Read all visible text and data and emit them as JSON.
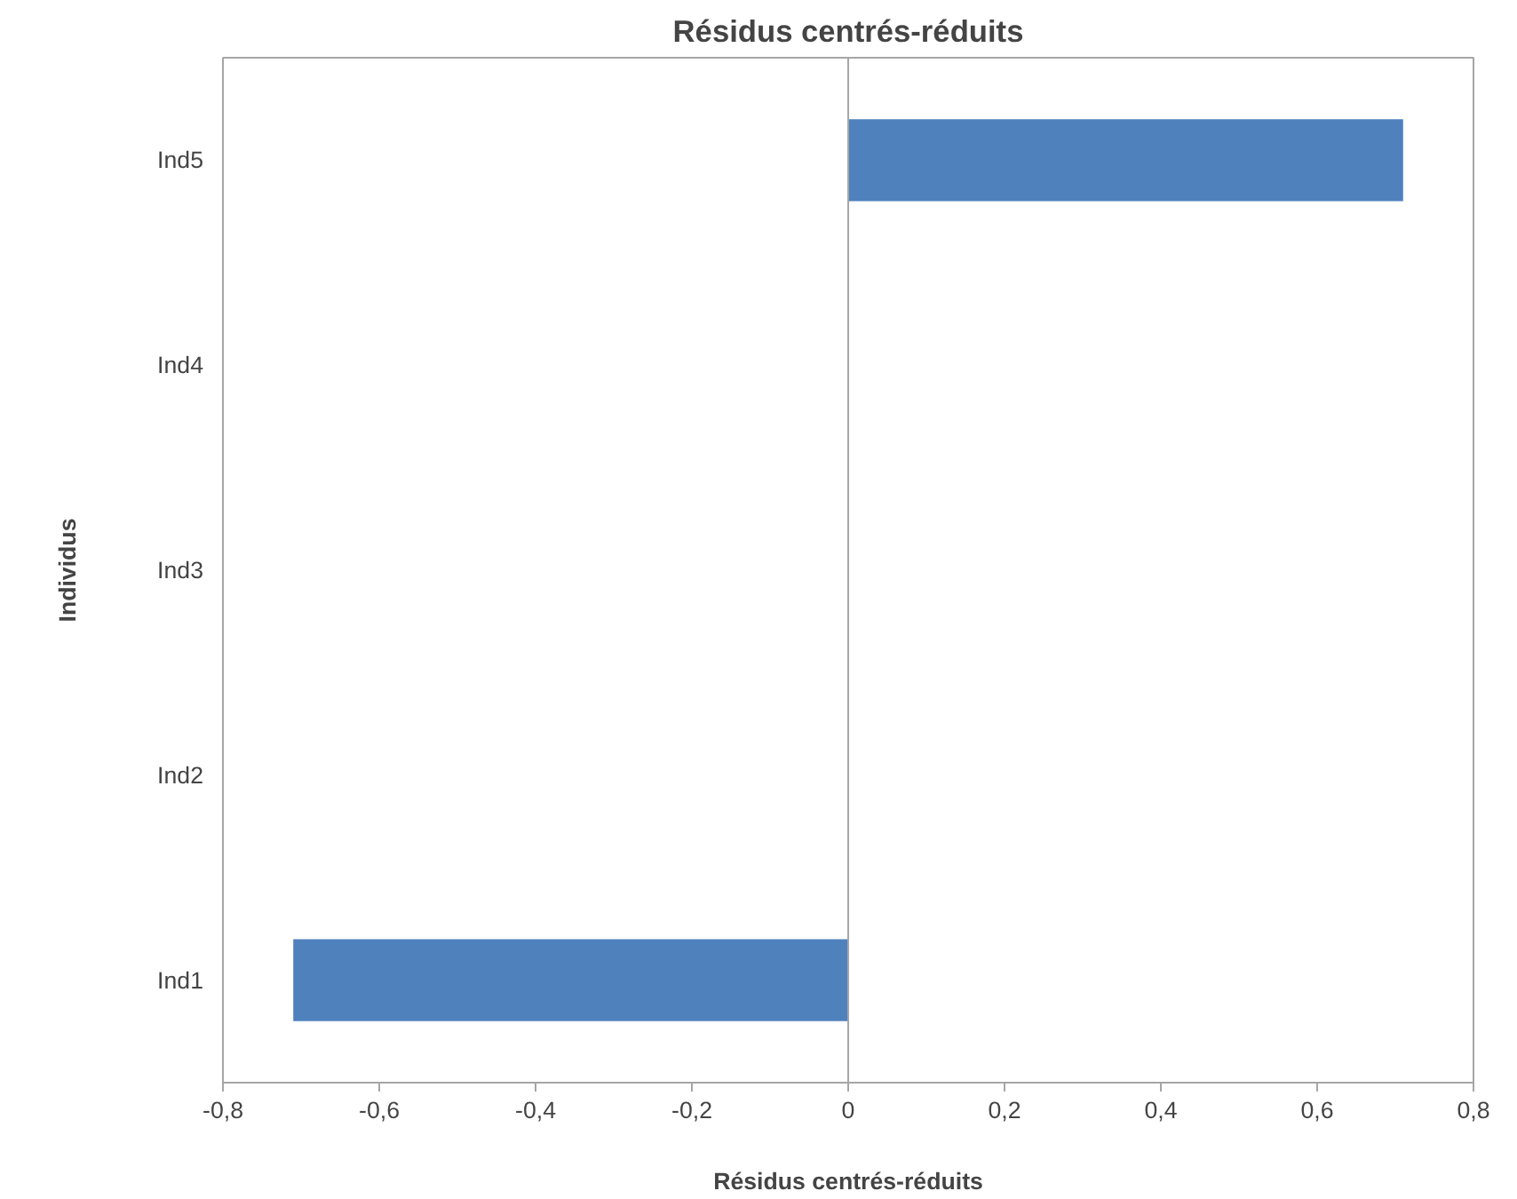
{
  "chart_data": {
    "type": "bar",
    "orientation": "horizontal",
    "title": "Résidus centrés-réduits",
    "xlabel": "Résidus centrés-réduits",
    "ylabel": "Individus",
    "categories": [
      "Ind5",
      "Ind4",
      "Ind3",
      "Ind2",
      "Ind1"
    ],
    "values": [
      0.71,
      0,
      0,
      0,
      -0.71
    ],
    "color": "#4f81bd",
    "xlim": [
      -0.8,
      0.8
    ],
    "xticks": [
      {
        "value": -0.8,
        "label": "-0,8"
      },
      {
        "value": -0.6,
        "label": "-0,6"
      },
      {
        "value": -0.4,
        "label": "-0,4"
      },
      {
        "value": -0.2,
        "label": "-0,2"
      },
      0,
      {
        "value": 0.2,
        "label": "0,2"
      },
      {
        "value": 0.4,
        "label": "0,4"
      },
      {
        "value": 0.6,
        "label": "0,6"
      },
      {
        "value": 0.8,
        "label": "0,8"
      }
    ]
  }
}
